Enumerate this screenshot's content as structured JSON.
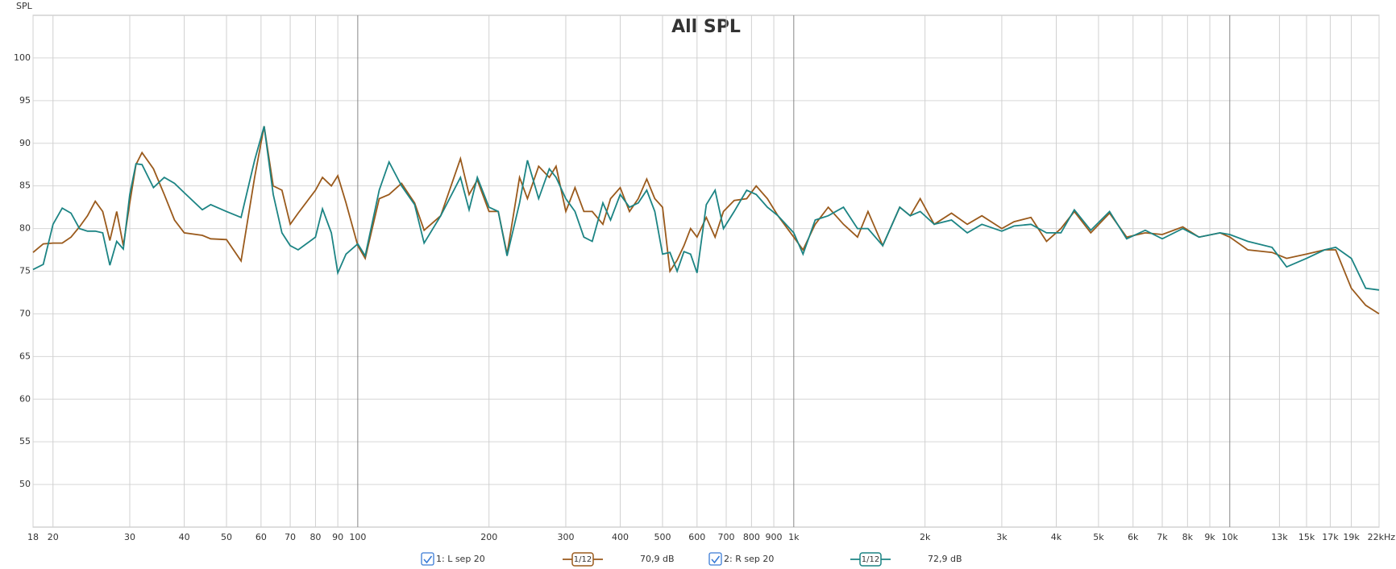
{
  "chart_data": {
    "type": "line",
    "title": "All SPL",
    "y_label": "SPL",
    "log_x": true,
    "grid": true,
    "xlim": [
      18,
      22000
    ],
    "ylim": [
      45,
      105
    ],
    "xticks": [
      18,
      20,
      30,
      40,
      50,
      60,
      70,
      80,
      90,
      100,
      200,
      300,
      400,
      500,
      600,
      700,
      800,
      900,
      {
        "value": 1000,
        "label": "1k"
      },
      {
        "value": 2000,
        "label": "2k"
      },
      {
        "value": 3000,
        "label": "3k"
      },
      {
        "value": 4000,
        "label": "4k"
      },
      {
        "value": 5000,
        "label": "5k"
      },
      {
        "value": 6000,
        "label": "6k"
      },
      {
        "value": 7000,
        "label": "7k"
      },
      {
        "value": 8000,
        "label": "8k"
      },
      {
        "value": 9000,
        "label": "9k"
      },
      {
        "value": 10000,
        "label": "10k"
      },
      {
        "value": 13000,
        "label": "13k"
      },
      {
        "value": 15000,
        "label": "15k"
      },
      {
        "value": 17000,
        "label": "17k"
      },
      {
        "value": 19000,
        "label": "19k"
      },
      {
        "value": 22000,
        "label": "22kHz"
      }
    ],
    "yticks": [
      50,
      55,
      60,
      65,
      70,
      75,
      80,
      85,
      90,
      95,
      100
    ],
    "x": [
      18,
      19,
      20,
      21,
      22,
      23,
      24,
      25,
      26,
      27,
      28,
      29,
      30,
      31,
      32,
      34,
      36,
      38,
      40,
      44,
      46,
      50,
      54,
      58,
      61,
      64,
      67,
      70,
      73,
      80,
      83,
      87,
      90,
      94,
      100,
      104,
      112,
      118,
      126,
      135,
      142,
      155,
      172,
      180,
      188,
      200,
      210,
      220,
      235,
      245,
      260,
      275,
      285,
      300,
      315,
      330,
      345,
      365,
      380,
      400,
      420,
      440,
      460,
      480,
      500,
      520,
      540,
      560,
      580,
      600,
      630,
      660,
      690,
      730,
      780,
      820,
      870,
      920,
      1000,
      1050,
      1120,
      1200,
      1300,
      1400,
      1480,
      1600,
      1750,
      1850,
      1950,
      2100,
      2300,
      2500,
      2700,
      3000,
      3200,
      3500,
      3800,
      4100,
      4400,
      4800,
      5300,
      5800,
      6400,
      7000,
      7800,
      8500,
      9500,
      10000,
      11000,
      12500,
      13500,
      15000,
      16500,
      17500,
      19000,
      20500,
      22000
    ],
    "series": [
      {
        "name": "1: L sep 20",
        "smoothing": "1/12",
        "readout": "70,9 dB",
        "color": "#9a5a1c",
        "values": [
          77.2,
          78.2,
          78.3,
          78.3,
          79.0,
          80.2,
          81.5,
          83.2,
          82.0,
          78.6,
          82.0,
          78.0,
          83.0,
          87.5,
          88.9,
          87.0,
          84.0,
          81.0,
          79.5,
          79.2,
          78.8,
          78.7,
          76.2,
          86.0,
          92.0,
          85.0,
          84.5,
          80.5,
          81.8,
          84.5,
          86.0,
          85.0,
          86.2,
          83.0,
          78.0,
          76.5,
          83.5,
          84.0,
          85.3,
          83.0,
          79.8,
          81.5,
          88.2,
          84.0,
          85.7,
          82.0,
          82.0,
          77.0,
          86.0,
          83.5,
          87.3,
          86.0,
          87.3,
          82.0,
          84.8,
          82.0,
          82.0,
          80.5,
          83.5,
          84.8,
          82.0,
          83.5,
          85.8,
          83.5,
          82.5,
          75.0,
          76.3,
          78.0,
          80.0,
          79.0,
          81.3,
          79.0,
          82.0,
          83.3,
          83.5,
          85.0,
          83.5,
          81.5,
          79.0,
          77.5,
          80.5,
          82.5,
          80.5,
          79.0,
          82.0,
          78.0,
          82.5,
          81.5,
          83.5,
          80.5,
          81.8,
          80.5,
          81.5,
          80.0,
          80.8,
          81.3,
          78.5,
          80.0,
          82.0,
          79.5,
          81.8,
          79.0,
          79.5,
          79.3,
          80.2,
          79.0,
          79.5,
          79.0,
          77.5,
          77.2,
          76.5,
          77.0,
          77.5,
          77.5,
          73.0,
          71.0,
          70.0
        ]
      },
      {
        "name": "2: R sep 20",
        "smoothing": "1/12",
        "readout": "72,9 dB",
        "color": "#1c8484",
        "values": [
          75.2,
          75.8,
          80.5,
          82.4,
          81.8,
          80.0,
          79.7,
          79.7,
          79.5,
          75.7,
          78.5,
          77.6,
          84.0,
          87.6,
          87.5,
          84.8,
          86.0,
          85.3,
          84.2,
          82.2,
          82.8,
          82.0,
          81.3,
          88.0,
          92.0,
          84.0,
          79.5,
          78.0,
          77.5,
          79.0,
          82.3,
          79.5,
          74.8,
          77.0,
          78.2,
          76.8,
          84.5,
          87.8,
          85.0,
          82.8,
          78.3,
          81.5,
          86.0,
          82.2,
          86.0,
          82.5,
          82.0,
          76.8,
          83.0,
          88.0,
          83.5,
          87.0,
          86.0,
          83.5,
          82.0,
          79.0,
          78.5,
          83.0,
          81.0,
          84.0,
          82.5,
          83.0,
          84.5,
          82.0,
          77.0,
          77.2,
          75.0,
          77.3,
          77.0,
          74.8,
          82.8,
          84.5,
          80.0,
          82.0,
          84.5,
          84.0,
          82.5,
          81.5,
          79.5,
          77.0,
          81.0,
          81.5,
          82.5,
          80.0,
          80.0,
          78.0,
          82.5,
          81.5,
          82.0,
          80.5,
          81.0,
          79.5,
          80.5,
          79.7,
          80.3,
          80.5,
          79.5,
          79.5,
          82.2,
          79.8,
          82.0,
          78.8,
          79.8,
          78.8,
          80.0,
          79.0,
          79.5,
          79.3,
          78.5,
          77.8,
          75.5,
          76.5,
          77.5,
          77.8,
          76.5,
          73.0,
          72.8
        ]
      }
    ]
  }
}
